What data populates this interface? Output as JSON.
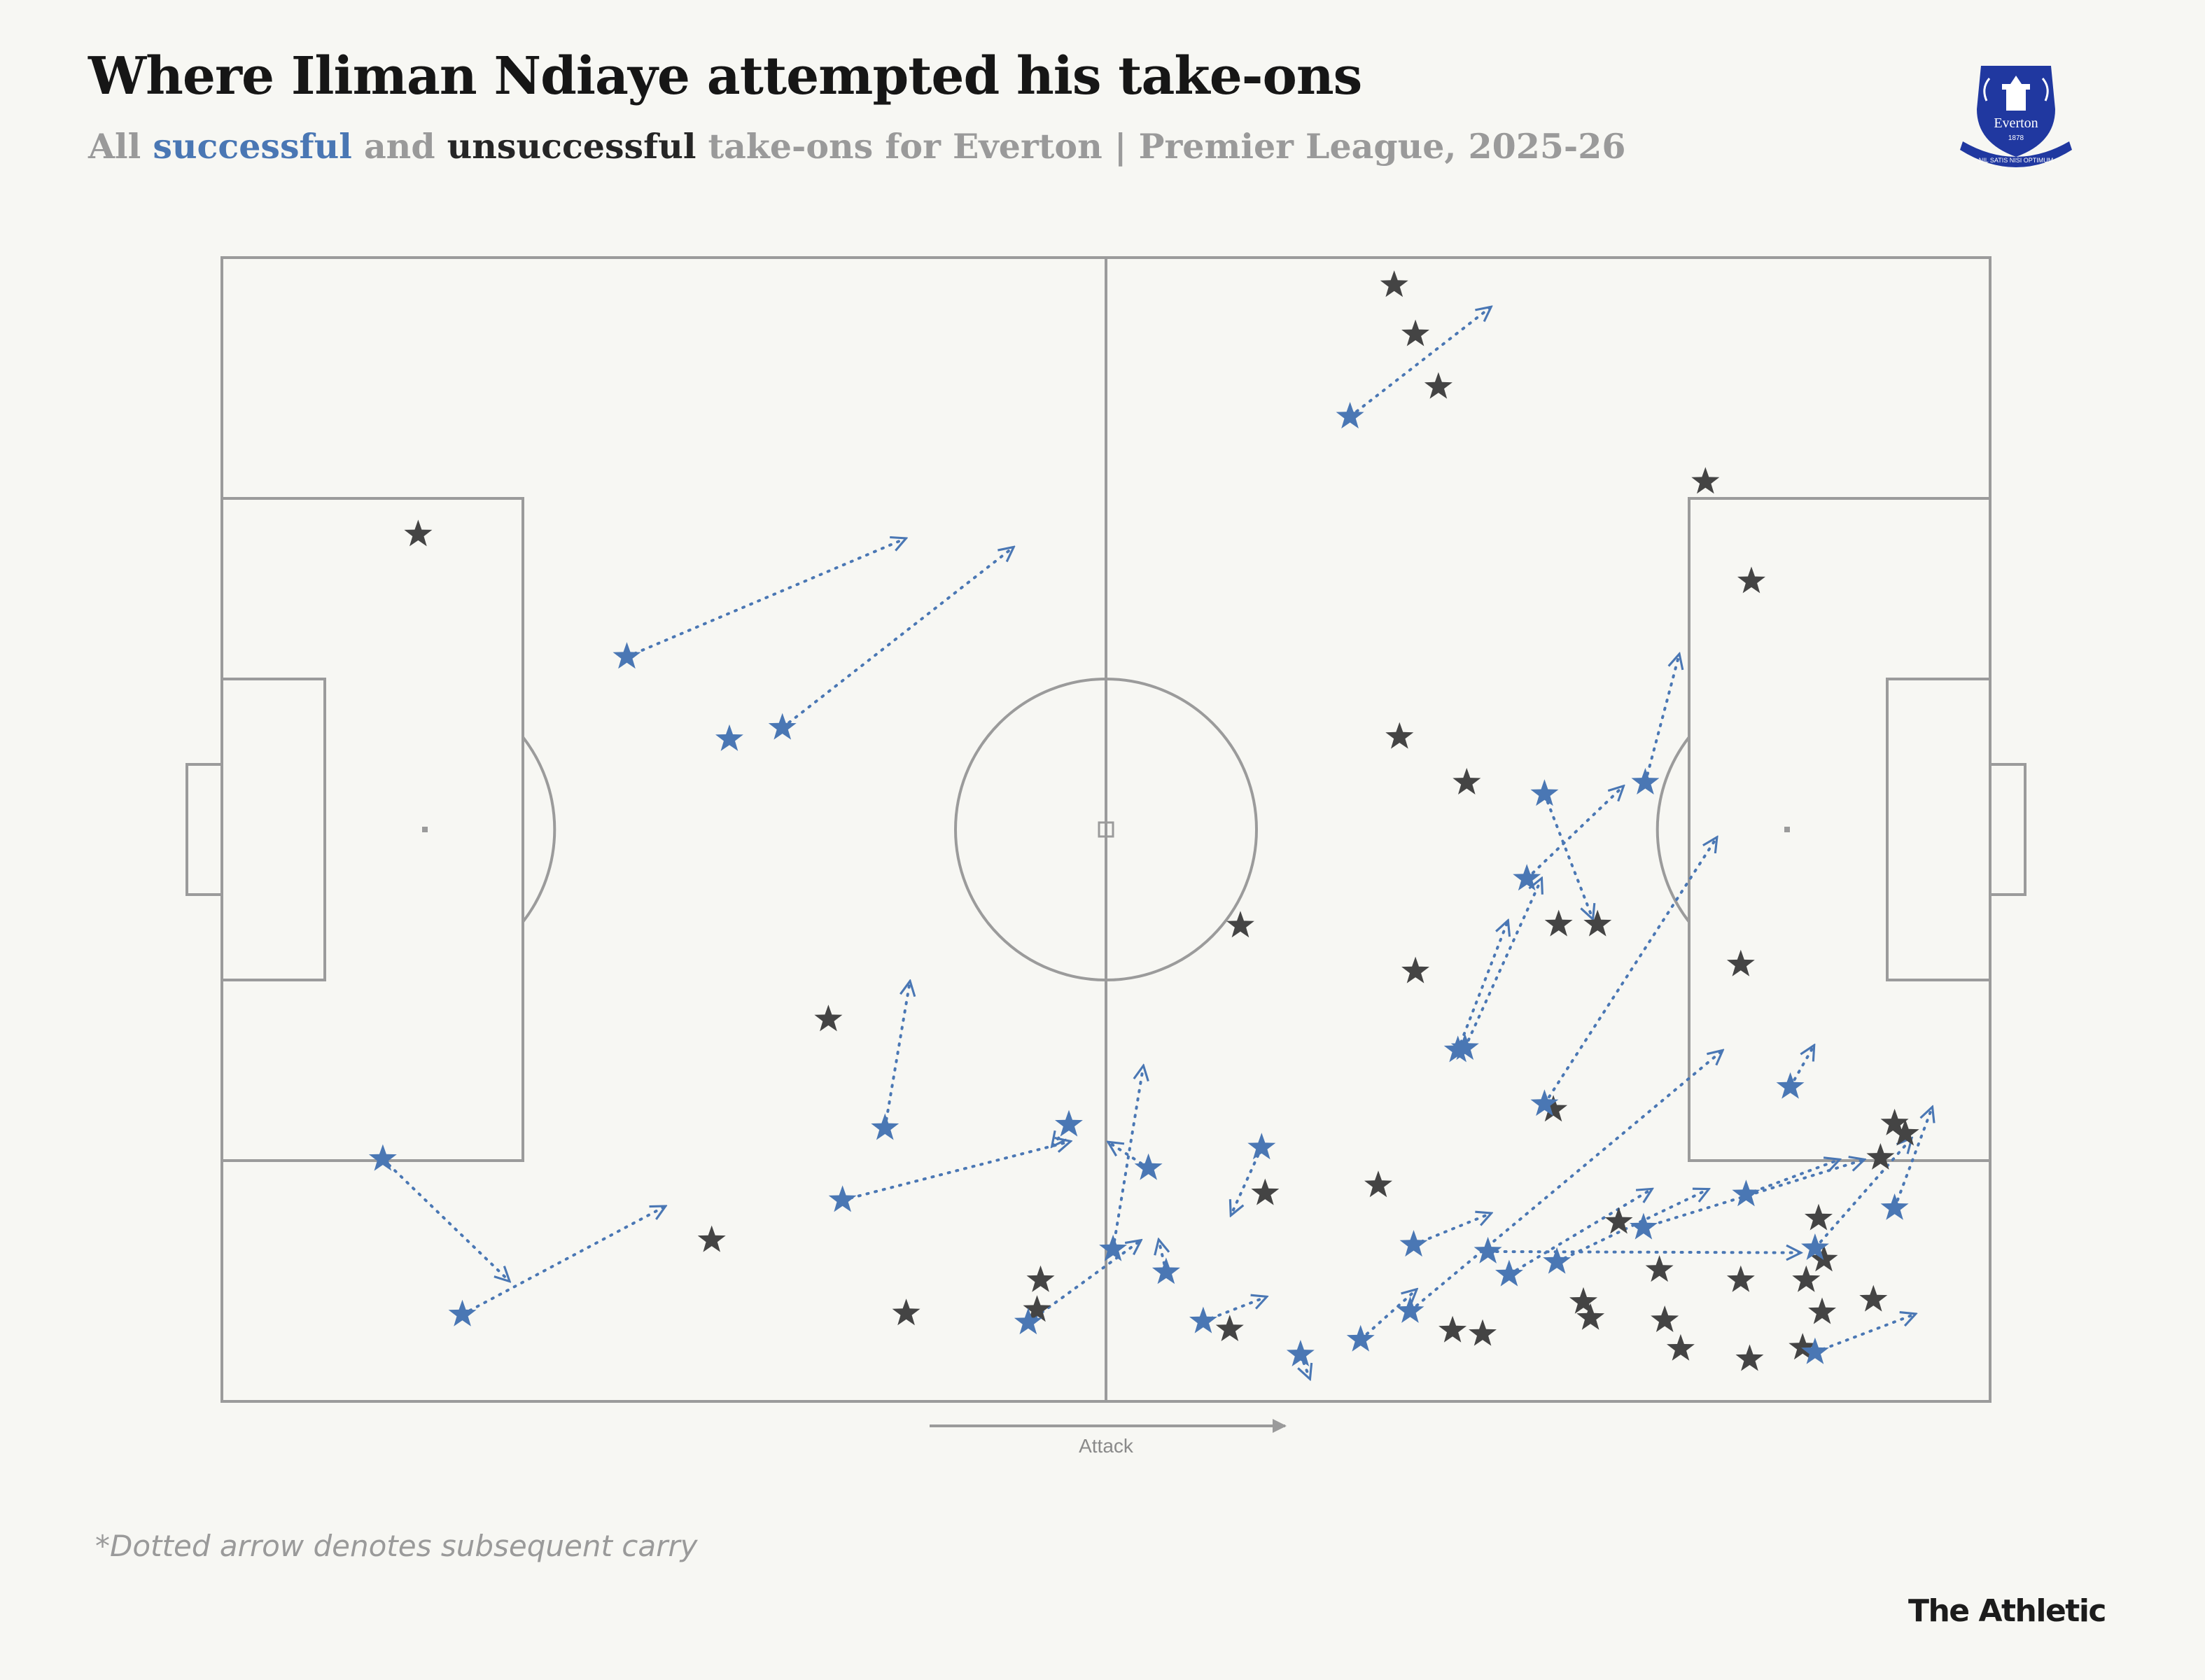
{
  "header": {
    "title": "Where Iliman Ndiaye attempted his take-ons",
    "subtitle_all": "All",
    "subtitle_successful": "successful",
    "subtitle_and": "and",
    "subtitle_unsuccessful": "unsuccessful",
    "subtitle_rest": "take-ons for Everton | Premier League, 2025-26"
  },
  "crest": {
    "club_text": "Everton",
    "year": "1878",
    "motto": "NIL SATIS NISI OPTIMUM"
  },
  "footnote": "*Dotted arrow denotes subsequent carry",
  "brand": "The Athletic",
  "colors": {
    "successful": "#4a77b4",
    "unsuccessful": "#444444",
    "pitch_lines": "#9b9b9b",
    "background": "#f7f7f3"
  },
  "chart_data": {
    "type": "scatter",
    "title": "Where Iliman Ndiaye attempted his take-ons",
    "direction_label": "Attack",
    "xlim": [
      0,
      100
    ],
    "ylim": [
      0,
      100
    ],
    "series": [
      {
        "name": "successful",
        "color": "#4a77b4",
        "points": [
          {
            "x": 9.1,
            "y": 21.2,
            "end": [
              16.2,
              10.6
            ]
          },
          {
            "x": 13.6,
            "y": 7.6,
            "end": [
              25.0,
              17.0
            ]
          },
          {
            "x": 22.9,
            "y": 65.1,
            "end": [
              38.6,
              75.4
            ]
          },
          {
            "x": 28.7,
            "y": 57.9
          },
          {
            "x": 31.7,
            "y": 58.9,
            "end": [
              44.7,
              74.6
            ]
          },
          {
            "x": 35.1,
            "y": 17.6,
            "end": [
              47.9,
              22.7
            ]
          },
          {
            "x": 37.5,
            "y": 23.9,
            "end": [
              38.9,
              36.6
            ]
          },
          {
            "x": 45.6,
            "y": 6.9,
            "end": [
              51.9,
              14.0
            ]
          },
          {
            "x": 47.9,
            "y": 24.2,
            "end": [
              47.0,
              22.4
            ]
          },
          {
            "x": 52.4,
            "y": 20.4,
            "end": [
              50.2,
              22.6
            ]
          },
          {
            "x": 50.4,
            "y": 13.3,
            "end": [
              52.1,
              29.2
            ]
          },
          {
            "x": 53.4,
            "y": 11.3,
            "end": [
              53.0,
              14.0
            ]
          },
          {
            "x": 55.5,
            "y": 7.0,
            "end": [
              59.0,
              9.1
            ]
          },
          {
            "x": 58.8,
            "y": 22.2,
            "end": [
              57.1,
              16.4
            ]
          },
          {
            "x": 61.0,
            "y": 4.1,
            "end": [
              61.5,
              2.1
            ]
          },
          {
            "x": 63.8,
            "y": 86.1,
            "end": [
              71.7,
              95.6
            ]
          },
          {
            "x": 64.4,
            "y": 5.4,
            "end": [
              67.5,
              9.7
            ]
          },
          {
            "x": 67.2,
            "y": 7.9,
            "end": [
              84.8,
              30.6
            ]
          },
          {
            "x": 67.4,
            "y": 13.7,
            "end": [
              71.7,
              16.4
            ]
          },
          {
            "x": 69.9,
            "y": 30.7,
            "end": [
              72.7,
              41.9
            ]
          },
          {
            "x": 70.3,
            "y": 30.9,
            "end": [
              74.6,
              45.6
            ]
          },
          {
            "x": 71.6,
            "y": 13.1,
            "end": [
              89.2,
              13.0
            ]
          },
          {
            "x": 72.8,
            "y": 11.1,
            "end": [
              80.8,
              18.5
            ]
          },
          {
            "x": 73.8,
            "y": 45.7,
            "end": [
              79.2,
              53.7
            ]
          },
          {
            "x": 74.8,
            "y": 53.1,
            "end": [
              77.5,
              42.3
            ]
          },
          {
            "x": 74.8,
            "y": 26.0,
            "end": [
              84.5,
              49.2
            ]
          },
          {
            "x": 75.5,
            "y": 12.2,
            "end": [
              84.0,
              18.5
            ]
          },
          {
            "x": 80.5,
            "y": 54.1,
            "end": [
              82.4,
              65.2
            ]
          },
          {
            "x": 80.4,
            "y": 15.2,
            "end": [
              92.8,
              21.1
            ]
          },
          {
            "x": 86.2,
            "y": 18.1,
            "end": [
              91.4,
              21.1
            ]
          },
          {
            "x": 88.7,
            "y": 27.5,
            "end": [
              90.0,
              31.0
            ]
          },
          {
            "x": 90.1,
            "y": 13.4,
            "end": [
              95.5,
              22.9
            ]
          },
          {
            "x": 90.1,
            "y": 4.3,
            "end": [
              95.7,
              7.6
            ]
          },
          {
            "x": 94.6,
            "y": 16.9,
            "end": [
              96.7,
              25.6
            ]
          }
        ]
      },
      {
        "name": "unsuccessful",
        "color": "#444444",
        "points": [
          {
            "x": 11.1,
            "y": 75.8
          },
          {
            "x": 34.3,
            "y": 33.4
          },
          {
            "x": 27.7,
            "y": 14.1
          },
          {
            "x": 38.7,
            "y": 7.7
          },
          {
            "x": 46.3,
            "y": 10.6
          },
          {
            "x": 46.1,
            "y": 8.0
          },
          {
            "x": 57.0,
            "y": 6.3
          },
          {
            "x": 59.0,
            "y": 18.2
          },
          {
            "x": 57.6,
            "y": 41.6
          },
          {
            "x": 66.3,
            "y": 97.6
          },
          {
            "x": 67.5,
            "y": 93.3
          },
          {
            "x": 68.8,
            "y": 88.7
          },
          {
            "x": 66.6,
            "y": 58.1
          },
          {
            "x": 70.4,
            "y": 54.1
          },
          {
            "x": 65.4,
            "y": 18.9
          },
          {
            "x": 67.5,
            "y": 37.6
          },
          {
            "x": 71.3,
            "y": 5.9
          },
          {
            "x": 69.6,
            "y": 6.2
          },
          {
            "x": 75.6,
            "y": 41.7
          },
          {
            "x": 75.3,
            "y": 25.5
          },
          {
            "x": 77.8,
            "y": 41.7
          },
          {
            "x": 77.0,
            "y": 8.7
          },
          {
            "x": 77.4,
            "y": 7.3
          },
          {
            "x": 79.0,
            "y": 15.7
          },
          {
            "x": 81.3,
            "y": 11.5
          },
          {
            "x": 81.6,
            "y": 7.1
          },
          {
            "x": 82.5,
            "y": 4.6
          },
          {
            "x": 83.9,
            "y": 80.4
          },
          {
            "x": 86.5,
            "y": 71.7
          },
          {
            "x": 85.9,
            "y": 38.2
          },
          {
            "x": 85.9,
            "y": 10.6
          },
          {
            "x": 86.4,
            "y": 3.7
          },
          {
            "x": 89.6,
            "y": 10.6
          },
          {
            "x": 89.4,
            "y": 4.7
          },
          {
            "x": 90.3,
            "y": 16.0
          },
          {
            "x": 90.6,
            "y": 12.4
          },
          {
            "x": 90.5,
            "y": 7.8
          },
          {
            "x": 93.4,
            "y": 8.9
          },
          {
            "x": 93.8,
            "y": 21.3
          },
          {
            "x": 94.6,
            "y": 24.3
          },
          {
            "x": 95.2,
            "y": 23.4
          }
        ]
      }
    ]
  }
}
